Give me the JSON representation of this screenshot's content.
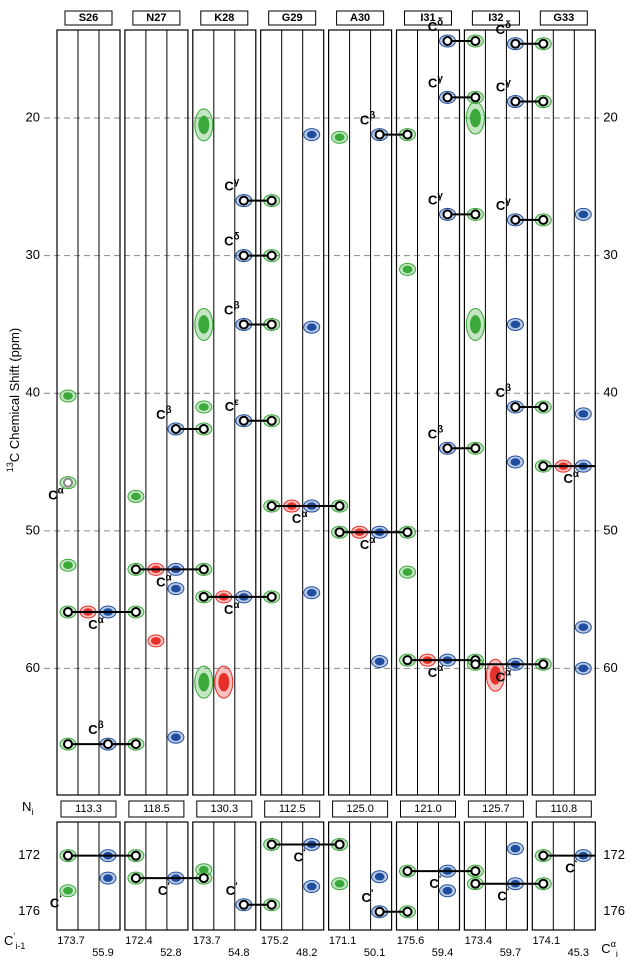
{
  "chart_data": {
    "type": "strip",
    "ylabel": {
      "sup": "13",
      "text": "C Chemical Shift (ppm)"
    },
    "n_label": {
      "base": "N",
      "sub": "i"
    },
    "c_prev_label": {
      "base": "C",
      "sup": "‘",
      "sub": "i-1"
    },
    "c_alpha_label": {
      "base": "C",
      "sup": "α",
      "sub": "i"
    },
    "peak_label_base": "C",
    "colors": {
      "g": "#3aa83a",
      "b": "#1f4ea0",
      "r": "#e8302a"
    },
    "panels": [
      {
        "ylim": [
          13.6,
          69.2
        ],
        "yticks": [
          20,
          30,
          40,
          50,
          60
        ],
        "grid": true
      },
      {
        "ylim": [
          169.6,
          177.3
        ],
        "yticks": [
          172,
          176
        ],
        "grid": false
      }
    ],
    "strips": [
      {
        "name": "S26",
        "n": "113.3",
        "c_prev": "173.7",
        "c_alpha": "55.9",
        "peaks": [
          {
            "shift": 46.5,
            "color": "g",
            "col": "l",
            "circle": "#888",
            "label": "α",
            "label_color": "#888"
          },
          {
            "shift": 40.2,
            "color": "g",
            "col": "l"
          },
          {
            "shift": 52.5,
            "color": "g",
            "col": "l"
          },
          {
            "shift": 55.9,
            "color": "g",
            "col": "l",
            "circle": "#000"
          },
          {
            "shift": 55.9,
            "color": "r",
            "col": "m"
          },
          {
            "shift": 55.9,
            "color": "b",
            "col": "r",
            "label": "α"
          },
          {
            "shift": 65.5,
            "color": "g",
            "col": "l",
            "circle": "#000"
          },
          {
            "shift": 65.5,
            "color": "b",
            "col": "r",
            "circle": "#000",
            "label": "β"
          }
        ],
        "co_peaks": [
          {
            "shift": 172,
            "color": "g",
            "col": "l",
            "circle": "#000"
          },
          {
            "shift": 174.5,
            "color": "g",
            "col": "l",
            "label": "‘",
            "label_color": "#888"
          },
          {
            "shift": 172,
            "color": "b",
            "col": "r"
          },
          {
            "shift": 173.6,
            "color": "b",
            "col": "r"
          }
        ]
      },
      {
        "name": "N27",
        "n": "118.5",
        "c_prev": "172.4",
        "c_alpha": "52.8",
        "peaks": [
          {
            "shift": 55.9,
            "color": "g",
            "col": "l",
            "circle": "#000"
          },
          {
            "shift": 65.5,
            "color": "g",
            "col": "l",
            "circle": "#000"
          },
          {
            "shift": 52.8,
            "color": "g",
            "col": "l",
            "circle": "#000"
          },
          {
            "shift": 47.5,
            "color": "g",
            "col": "l"
          },
          {
            "shift": 52.8,
            "color": "r",
            "col": "m"
          },
          {
            "shift": 58,
            "color": "r",
            "col": "m"
          },
          {
            "shift": 52.8,
            "color": "b",
            "col": "r",
            "label": "α"
          },
          {
            "shift": 54.2,
            "color": "b",
            "col": "r"
          },
          {
            "shift": 65,
            "color": "b",
            "col": "r"
          },
          {
            "shift": 42.6,
            "color": "b",
            "col": "r",
            "circle": "#000",
            "label": "β"
          }
        ],
        "co_peaks": [
          {
            "shift": 172,
            "color": "g",
            "col": "l",
            "circle": "#000"
          },
          {
            "shift": 173.6,
            "color": "g",
            "col": "l",
            "circle": "#000"
          },
          {
            "shift": 173.6,
            "color": "b",
            "col": "r",
            "label": "‘"
          }
        ]
      },
      {
        "name": "K28",
        "n": "130.3",
        "c_prev": "173.7",
        "c_alpha": "54.8",
        "peaks": [
          {
            "shift": 20.5,
            "color": "g",
            "col": "l",
            "size": 2
          },
          {
            "shift": 35,
            "color": "g",
            "col": "l",
            "size": 2
          },
          {
            "shift": 41,
            "color": "g",
            "col": "l"
          },
          {
            "shift": 61,
            "color": "g",
            "col": "l",
            "size": 2
          },
          {
            "shift": 42.6,
            "color": "g",
            "col": "l",
            "circle": "#000"
          },
          {
            "shift": 52.8,
            "color": "g",
            "col": "l",
            "circle": "#000"
          },
          {
            "shift": 54.8,
            "color": "g",
            "col": "l",
            "circle": "#000"
          },
          {
            "shift": 54.8,
            "color": "r",
            "col": "m"
          },
          {
            "shift": 61,
            "color": "r",
            "col": "m",
            "size": 2
          },
          {
            "shift": 54.8,
            "color": "b",
            "col": "r",
            "label": "α"
          },
          {
            "shift": 26,
            "color": "b",
            "col": "r",
            "circle": "#000",
            "label": "γ"
          },
          {
            "shift": 30,
            "color": "b",
            "col": "r",
            "circle": "#000",
            "label": "δ"
          },
          {
            "shift": 35,
            "color": "b",
            "col": "r",
            "circle": "#000",
            "label": "β"
          },
          {
            "shift": 42,
            "color": "b",
            "col": "r",
            "circle": "#000",
            "label": "ε"
          }
        ],
        "co_peaks": [
          {
            "shift": 173.6,
            "color": "g",
            "col": "l",
            "circle": "#000"
          },
          {
            "shift": 173,
            "color": "g",
            "col": "l"
          },
          {
            "shift": 175.5,
            "color": "b",
            "col": "r",
            "circle": "#000",
            "label": "‘"
          }
        ]
      },
      {
        "name": "G29",
        "n": "112.5",
        "c_prev": "175.2",
        "c_alpha": "48.2",
        "peaks": [
          {
            "shift": 26,
            "color": "g",
            "col": "l",
            "circle": "#000"
          },
          {
            "shift": 30,
            "color": "g",
            "col": "l",
            "circle": "#000"
          },
          {
            "shift": 35,
            "color": "g",
            "col": "l",
            "circle": "#000"
          },
          {
            "shift": 42,
            "color": "g",
            "col": "l",
            "circle": "#000"
          },
          {
            "shift": 54.8,
            "color": "g",
            "col": "l",
            "circle": "#000"
          },
          {
            "shift": 48.2,
            "color": "g",
            "col": "l",
            "circle": "#000"
          },
          {
            "shift": 48.2,
            "color": "r",
            "col": "m"
          },
          {
            "shift": 48.2,
            "color": "b",
            "col": "r",
            "label": "α"
          },
          {
            "shift": 21.2,
            "color": "b",
            "col": "r"
          },
          {
            "shift": 35.2,
            "color": "b",
            "col": "r"
          },
          {
            "shift": 54.5,
            "color": "b",
            "col": "r"
          }
        ],
        "co_peaks": [
          {
            "shift": 175.5,
            "color": "g",
            "col": "l",
            "circle": "#000"
          },
          {
            "shift": 171.2,
            "color": "g",
            "col": "l",
            "circle": "#000"
          },
          {
            "shift": 171.2,
            "color": "b",
            "col": "r",
            "label": "‘"
          },
          {
            "shift": 174.2,
            "color": "b",
            "col": "r"
          }
        ]
      },
      {
        "name": "A30",
        "n": "125.0",
        "c_prev": "171.1",
        "c_alpha": "50.1",
        "peaks": [
          {
            "shift": 48.2,
            "color": "g",
            "col": "l",
            "circle": "#000"
          },
          {
            "shift": 50.1,
            "color": "g",
            "col": "l",
            "circle": "#000"
          },
          {
            "shift": 21.4,
            "color": "g",
            "col": "l"
          },
          {
            "shift": 50.1,
            "color": "r",
            "col": "m"
          },
          {
            "shift": 50.1,
            "color": "b",
            "col": "r",
            "label": "α"
          },
          {
            "shift": 59.5,
            "color": "b",
            "col": "r"
          },
          {
            "shift": 21.2,
            "color": "b",
            "col": "r",
            "circle": "#000",
            "label": "β"
          }
        ],
        "co_peaks": [
          {
            "shift": 171.2,
            "color": "g",
            "col": "l",
            "circle": "#000"
          },
          {
            "shift": 174,
            "color": "g",
            "col": "l"
          },
          {
            "shift": 173.5,
            "color": "b",
            "col": "r"
          },
          {
            "shift": 176,
            "color": "b",
            "col": "r",
            "circle": "#000",
            "label": "‘"
          }
        ]
      },
      {
        "name": "I31",
        "n": "121.0",
        "c_prev": "175.6",
        "c_alpha": "59.4",
        "peaks": [
          {
            "shift": 21.2,
            "color": "g",
            "col": "l",
            "circle": "#000"
          },
          {
            "shift": 50.1,
            "color": "g",
            "col": "l",
            "circle": "#000"
          },
          {
            "shift": 59.4,
            "color": "g",
            "col": "l",
            "circle": "#000"
          },
          {
            "shift": 31,
            "color": "g",
            "col": "l"
          },
          {
            "shift": 53,
            "color": "g",
            "col": "l"
          },
          {
            "shift": 59.4,
            "color": "r",
            "col": "m"
          },
          {
            "shift": 59.4,
            "color": "b",
            "col": "r",
            "label": "α"
          },
          {
            "shift": 14.4,
            "color": "b",
            "col": "r",
            "circle": "#000",
            "label": "δ"
          },
          {
            "shift": 18.5,
            "color": "b",
            "col": "r",
            "circle": "#000",
            "label": "γ"
          },
          {
            "shift": 27,
            "color": "b",
            "col": "r",
            "circle": "#000",
            "label": "γ"
          },
          {
            "shift": 44,
            "color": "b",
            "col": "r",
            "circle": "#000",
            "label": "β"
          }
        ],
        "co_peaks": [
          {
            "shift": 176,
            "color": "g",
            "col": "l",
            "circle": "#000"
          },
          {
            "shift": 173.1,
            "color": "g",
            "col": "l",
            "circle": "#000"
          },
          {
            "shift": 173.1,
            "color": "b",
            "col": "r",
            "label": "‘"
          },
          {
            "shift": 174.5,
            "color": "b",
            "col": "r"
          }
        ]
      },
      {
        "name": "I32",
        "n": "125.7",
        "c_prev": "173.4",
        "c_alpha": "59.7",
        "peaks": [
          {
            "shift": 20,
            "color": "g",
            "col": "l",
            "size": 2
          },
          {
            "shift": 35,
            "color": "g",
            "col": "l",
            "size": 2
          },
          {
            "shift": 14.4,
            "color": "g",
            "col": "l",
            "circle": "#000"
          },
          {
            "shift": 18.5,
            "color": "g",
            "col": "l",
            "circle": "#000"
          },
          {
            "shift": 27,
            "color": "g",
            "col": "l",
            "circle": "#000"
          },
          {
            "shift": 44,
            "color": "g",
            "col": "l",
            "circle": "#000"
          },
          {
            "shift": 59.4,
            "color": "g",
            "col": "l",
            "circle": "#000"
          },
          {
            "shift": 59.7,
            "color": "g",
            "col": "l",
            "circle": "#000"
          },
          {
            "shift": 60.5,
            "color": "r",
            "col": "m",
            "size": 2
          },
          {
            "shift": 59.7,
            "color": "b",
            "col": "r",
            "label": "α"
          },
          {
            "shift": 35,
            "color": "b",
            "col": "r"
          },
          {
            "shift": 45,
            "color": "b",
            "col": "r"
          },
          {
            "shift": 14.6,
            "color": "b",
            "col": "r",
            "circle": "#000",
            "label": "δ"
          },
          {
            "shift": 18.8,
            "color": "b",
            "col": "r",
            "circle": "#000",
            "label": "γ"
          },
          {
            "shift": 27.4,
            "color": "b",
            "col": "r",
            "circle": "#000",
            "label": "γ"
          },
          {
            "shift": 41,
            "color": "b",
            "col": "r",
            "circle": "#000",
            "label": "β"
          }
        ],
        "co_peaks": [
          {
            "shift": 173.1,
            "color": "g",
            "col": "l",
            "circle": "#000"
          },
          {
            "shift": 174,
            "color": "g",
            "col": "l",
            "circle": "#000"
          },
          {
            "shift": 174,
            "color": "b",
            "col": "r",
            "label": "‘"
          },
          {
            "shift": 171.5,
            "color": "b",
            "col": "r"
          }
        ]
      },
      {
        "name": "G33",
        "n": "110.8",
        "c_prev": "174.1",
        "c_alpha": "45.3",
        "peaks": [
          {
            "shift": 14.6,
            "color": "g",
            "col": "l",
            "circle": "#000"
          },
          {
            "shift": 18.8,
            "color": "g",
            "col": "l",
            "circle": "#000"
          },
          {
            "shift": 27.4,
            "color": "g",
            "col": "l",
            "circle": "#000"
          },
          {
            "shift": 41,
            "color": "g",
            "col": "l",
            "circle": "#000"
          },
          {
            "shift": 59.7,
            "color": "g",
            "col": "l",
            "circle": "#000"
          },
          {
            "shift": 45.3,
            "color": "g",
            "col": "l",
            "circle": "#000"
          },
          {
            "shift": 45.3,
            "color": "r",
            "col": "m"
          },
          {
            "shift": 45.3,
            "color": "b",
            "col": "r",
            "label": "α"
          },
          {
            "shift": 27,
            "color": "b",
            "col": "r"
          },
          {
            "shift": 41.5,
            "color": "b",
            "col": "r"
          },
          {
            "shift": 57,
            "color": "b",
            "col": "r"
          },
          {
            "shift": 60,
            "color": "b",
            "col": "r"
          }
        ],
        "co_peaks": [
          {
            "shift": 174,
            "color": "g",
            "col": "l",
            "circle": "#000"
          },
          {
            "shift": 172,
            "color": "g",
            "col": "l",
            "circle": "#000"
          },
          {
            "shift": 172,
            "color": "b",
            "col": "r",
            "label": "‘"
          }
        ]
      }
    ]
  }
}
